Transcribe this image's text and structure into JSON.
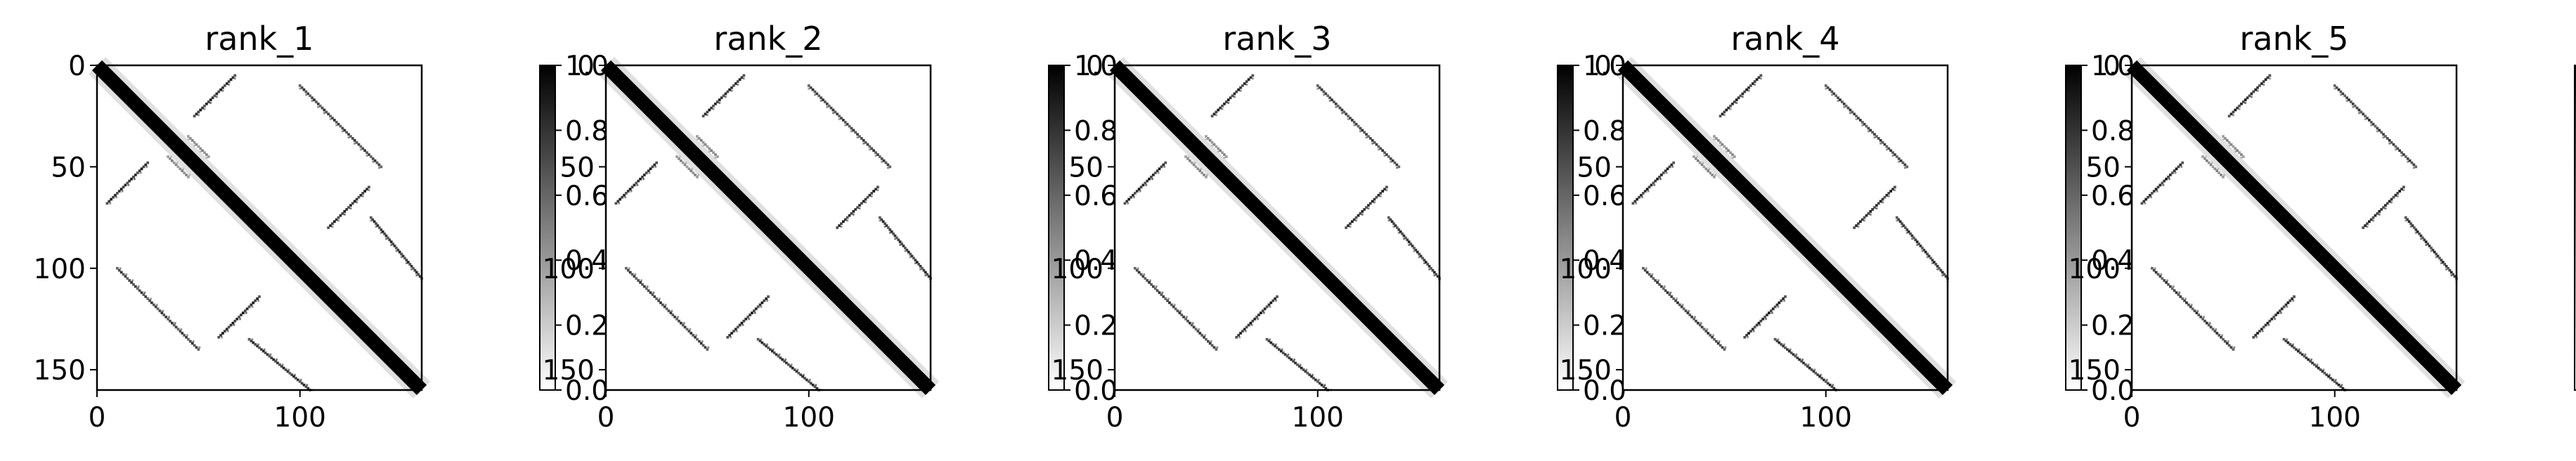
{
  "chart_data": [
    {
      "type": "heatmap",
      "title": "rank_1",
      "matrix_size": 160,
      "cmap": "Greys",
      "xlim": [
        0,
        160
      ],
      "ylim": [
        160,
        0
      ],
      "x_ticks": [
        0,
        100
      ],
      "y_ticks": [
        0,
        50,
        100,
        150
      ],
      "colorbar": {
        "range": [
          0.0,
          1.0
        ],
        "ticks": [
          "0.0",
          "0.2",
          "0.4",
          "0.6",
          "0.8",
          "1.0"
        ]
      },
      "grid": false,
      "contacts": [
        {
          "kind": "main-diagonal",
          "from": 0,
          "to": 160,
          "value": 1.0
        },
        {
          "kind": "antiparallel-hairpin",
          "i_range": [
            5,
            25
          ],
          "j_range": [
            68,
            48
          ],
          "value": 0.9
        },
        {
          "kind": "antiparallel-hairpin",
          "i_range": [
            60,
            80
          ],
          "j_range": [
            134,
            114
          ],
          "value": 0.9
        },
        {
          "kind": "parallel-strand",
          "i_range": [
            75,
            105
          ],
          "j_range": [
            135,
            160
          ],
          "value": 0.85
        },
        {
          "kind": "antiparallel-sheet",
          "i_range": [
            10,
            50
          ],
          "j_range": [
            100,
            140
          ],
          "value": 0.8
        },
        {
          "kind": "parallel-strand",
          "i_range": [
            35,
            45
          ],
          "j_range": [
            45,
            55
          ],
          "value": 0.5
        }
      ]
    },
    {
      "type": "heatmap",
      "title": "rank_2",
      "matrix_size": 160,
      "cmap": "Greys",
      "xlim": [
        0,
        160
      ],
      "ylim": [
        160,
        0
      ],
      "x_ticks": [
        0,
        100
      ],
      "y_ticks": [
        0,
        50,
        100,
        150
      ],
      "colorbar": {
        "range": [
          0.0,
          1.0
        ],
        "ticks": [
          "0.0",
          "0.2",
          "0.4",
          "0.6",
          "0.8",
          "1.0"
        ]
      },
      "grid": false,
      "contacts": [
        {
          "kind": "main-diagonal",
          "from": 0,
          "to": 160,
          "value": 1.0
        },
        {
          "kind": "antiparallel-hairpin",
          "i_range": [
            5,
            25
          ],
          "j_range": [
            68,
            48
          ],
          "value": 0.9
        },
        {
          "kind": "antiparallel-hairpin",
          "i_range": [
            60,
            80
          ],
          "j_range": [
            134,
            114
          ],
          "value": 0.9
        },
        {
          "kind": "parallel-strand",
          "i_range": [
            75,
            105
          ],
          "j_range": [
            135,
            160
          ],
          "value": 0.85
        },
        {
          "kind": "antiparallel-sheet",
          "i_range": [
            10,
            50
          ],
          "j_range": [
            100,
            140
          ],
          "value": 0.8
        },
        {
          "kind": "parallel-strand",
          "i_range": [
            35,
            45
          ],
          "j_range": [
            45,
            55
          ],
          "value": 0.5
        }
      ]
    },
    {
      "type": "heatmap",
      "title": "rank_3",
      "matrix_size": 160,
      "cmap": "Greys",
      "xlim": [
        0,
        160
      ],
      "ylim": [
        160,
        0
      ],
      "x_ticks": [
        0,
        100
      ],
      "y_ticks": [
        0,
        50,
        100,
        150
      ],
      "colorbar": {
        "range": [
          0.0,
          1.0
        ],
        "ticks": [
          "0.0",
          "0.2",
          "0.4",
          "0.6",
          "0.8",
          "1.0"
        ]
      },
      "grid": false,
      "contacts": [
        {
          "kind": "main-diagonal",
          "from": 0,
          "to": 160,
          "value": 1.0
        },
        {
          "kind": "antiparallel-hairpin",
          "i_range": [
            5,
            25
          ],
          "j_range": [
            68,
            48
          ],
          "value": 0.9
        },
        {
          "kind": "antiparallel-hairpin",
          "i_range": [
            60,
            80
          ],
          "j_range": [
            134,
            114
          ],
          "value": 0.9
        },
        {
          "kind": "parallel-strand",
          "i_range": [
            75,
            105
          ],
          "j_range": [
            135,
            160
          ],
          "value": 0.85
        },
        {
          "kind": "antiparallel-sheet",
          "i_range": [
            10,
            50
          ],
          "j_range": [
            100,
            140
          ],
          "value": 0.8
        },
        {
          "kind": "parallel-strand",
          "i_range": [
            35,
            45
          ],
          "j_range": [
            45,
            55
          ],
          "value": 0.5
        }
      ]
    },
    {
      "type": "heatmap",
      "title": "rank_4",
      "matrix_size": 160,
      "cmap": "Greys",
      "xlim": [
        0,
        160
      ],
      "ylim": [
        160,
        0
      ],
      "x_ticks": [
        0,
        100
      ],
      "y_ticks": [
        0,
        50,
        100,
        150
      ],
      "colorbar": {
        "range": [
          0.0,
          1.0
        ],
        "ticks": [
          "0.0",
          "0.2",
          "0.4",
          "0.6",
          "0.8",
          "1.0"
        ]
      },
      "grid": false,
      "contacts": [
        {
          "kind": "main-diagonal",
          "from": 0,
          "to": 160,
          "value": 1.0
        },
        {
          "kind": "antiparallel-hairpin",
          "i_range": [
            5,
            25
          ],
          "j_range": [
            68,
            48
          ],
          "value": 0.9
        },
        {
          "kind": "antiparallel-hairpin",
          "i_range": [
            60,
            80
          ],
          "j_range": [
            134,
            114
          ],
          "value": 0.9
        },
        {
          "kind": "parallel-strand",
          "i_range": [
            75,
            105
          ],
          "j_range": [
            135,
            160
          ],
          "value": 0.85
        },
        {
          "kind": "antiparallel-sheet",
          "i_range": [
            10,
            50
          ],
          "j_range": [
            100,
            140
          ],
          "value": 0.8
        },
        {
          "kind": "parallel-strand",
          "i_range": [
            35,
            45
          ],
          "j_range": [
            45,
            55
          ],
          "value": 0.5
        }
      ]
    },
    {
      "type": "heatmap",
      "title": "rank_5",
      "matrix_size": 160,
      "cmap": "Greys",
      "xlim": [
        0,
        160
      ],
      "ylim": [
        160,
        0
      ],
      "x_ticks": [
        0,
        100
      ],
      "y_ticks": [
        0,
        50,
        100,
        150
      ],
      "colorbar": {
        "range": [
          0.0,
          1.0
        ],
        "ticks": [
          "0.0",
          "0.2",
          "0.4",
          "0.6",
          "0.8",
          "1.0"
        ]
      },
      "grid": false,
      "contacts": [
        {
          "kind": "main-diagonal",
          "from": 0,
          "to": 160,
          "value": 1.0
        },
        {
          "kind": "antiparallel-hairpin",
          "i_range": [
            5,
            25
          ],
          "j_range": [
            68,
            48
          ],
          "value": 0.9
        },
        {
          "kind": "antiparallel-hairpin",
          "i_range": [
            60,
            80
          ],
          "j_range": [
            134,
            114
          ],
          "value": 0.9
        },
        {
          "kind": "parallel-strand",
          "i_range": [
            75,
            105
          ],
          "j_range": [
            135,
            160
          ],
          "value": 0.85
        },
        {
          "kind": "antiparallel-sheet",
          "i_range": [
            10,
            50
          ],
          "j_range": [
            100,
            140
          ],
          "value": 0.8
        },
        {
          "kind": "parallel-strand",
          "i_range": [
            35,
            45
          ],
          "j_range": [
            45,
            55
          ],
          "value": 0.5
        }
      ]
    }
  ]
}
